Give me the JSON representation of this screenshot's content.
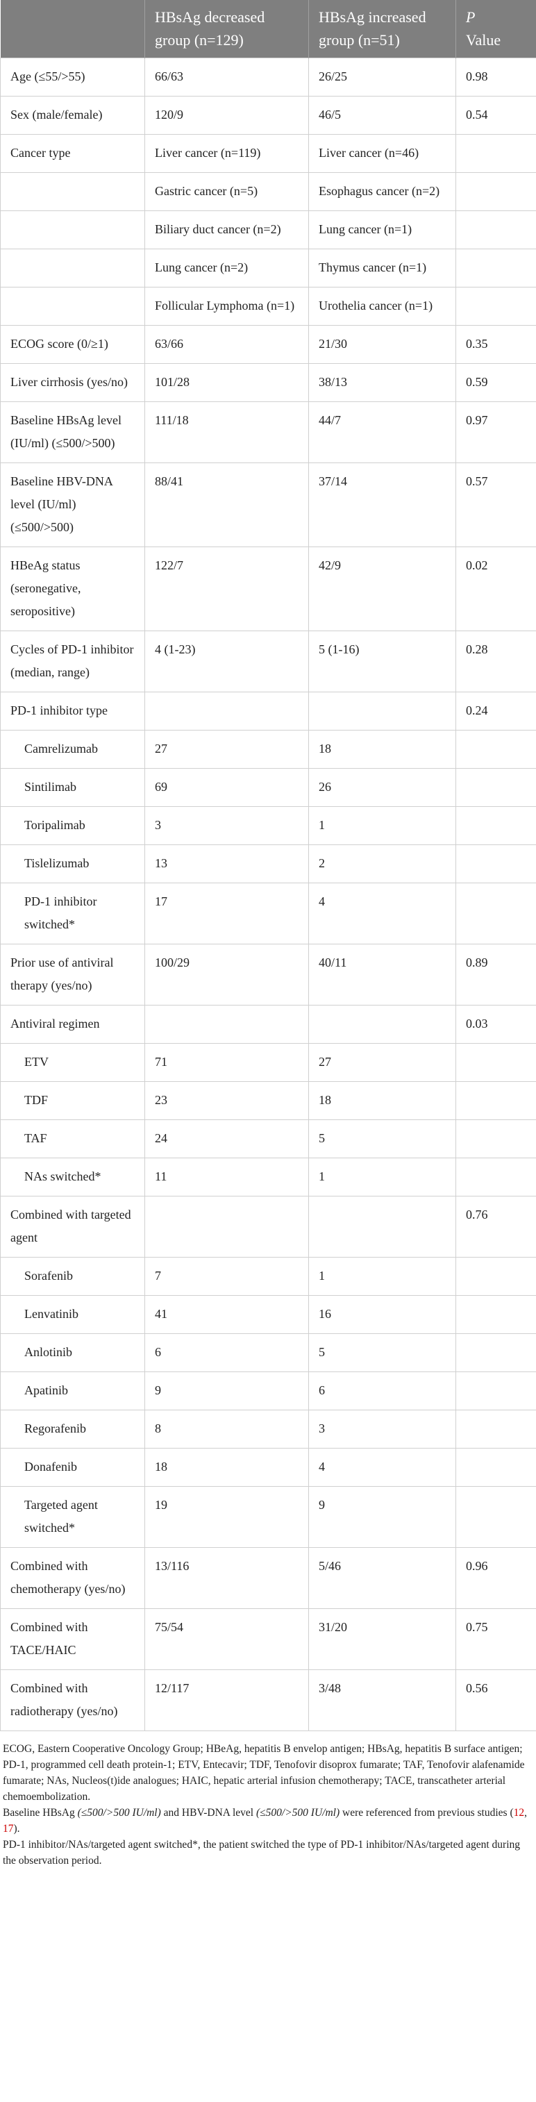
{
  "table": {
    "header": [
      "HBsAg decreased group (n=129)",
      "HBsAg increased group (n=51)",
      "P",
      "Value"
    ],
    "rows": [
      {
        "cells": [
          "Age (≤55/>55)",
          "66/63",
          "26/25",
          "0.98"
        ]
      },
      {
        "cells": [
          "Sex (male/female)",
          "120/9",
          "46/5",
          "0.54"
        ]
      },
      {
        "cells": [
          "Cancer type",
          "Liver cancer (n=119)",
          "Liver cancer (n=46)"
        ]
      },
      {
        "cells": [
          null,
          "Gastric cancer (n=5)",
          "Esophagus cancer (n=2)"
        ]
      },
      {
        "cells": [
          null,
          "Biliary duct cancer (n=2)",
          "Lung cancer (n=1)"
        ]
      },
      {
        "cells": [
          null,
          "Lung cancer (n=2)",
          "Thymus cancer (n=1)"
        ]
      },
      {
        "cells": [
          null,
          "Follicular Lymphoma (n=1)",
          "Urothelia cancer (n=1)"
        ]
      },
      {
        "cells": [
          "ECOG score (0/≥1)",
          "63/66",
          "21/30",
          "0.35"
        ]
      },
      {
        "cells": [
          "Liver cirrhosis (yes/no)",
          "101/28",
          "38/13",
          "0.59"
        ]
      },
      {
        "cells": [
          "Baseline HBsAg level (IU/ml) (≤500/>500)",
          "111/18",
          "44/7",
          "0.97"
        ]
      },
      {
        "cells": [
          "Baseline HBV-DNA level (IU/ml) (≤500/>500)",
          "88/41",
          "37/14",
          "0.57"
        ]
      },
      {
        "cells": [
          "HBeAg status (seronegative, seropositive)",
          "122/7",
          "42/9",
          "0.02"
        ]
      },
      {
        "cells": [
          "Cycles of PD-1 inhibitor (median, range)",
          "4 (1-23)",
          "5 (1-16)",
          "0.28"
        ]
      },
      {
        "cells": [
          "PD-1 inhibitor type",
          null,
          null,
          "0.24"
        ]
      },
      {
        "cells": [
          "Camrelizumab",
          "27",
          "18"
        ],
        "indent": true
      },
      {
        "cells": [
          "Sintilimab",
          "69",
          "26"
        ],
        "indent": true
      },
      {
        "cells": [
          "Toripalimab",
          "3",
          "1"
        ],
        "indent": true
      },
      {
        "cells": [
          "Tislelizumab",
          "13",
          "2"
        ],
        "indent": true
      },
      {
        "cells": [
          "PD-1 inhibitor switched*",
          "17",
          "4"
        ],
        "indent": true
      },
      {
        "cells": [
          "Prior use of antiviral therapy (yes/no)",
          "100/29",
          "40/11",
          "0.89"
        ]
      },
      {
        "cells": [
          "Antiviral regimen",
          null,
          null,
          "0.03"
        ]
      },
      {
        "cells": [
          "ETV",
          "71",
          "27"
        ],
        "indent": true
      },
      {
        "cells": [
          "TDF",
          "23",
          "18"
        ],
        "indent": true
      },
      {
        "cells": [
          "TAF",
          "24",
          "5"
        ],
        "indent": true
      },
      {
        "cells": [
          "NAs switched*",
          "11",
          "1"
        ],
        "indent": true
      },
      {
        "cells": [
          "Combined with targeted agent",
          null,
          null,
          "0.76"
        ]
      },
      {
        "cells": [
          "Sorafenib",
          "7",
          "1"
        ],
        "indent": true
      },
      {
        "cells": [
          "Lenvatinib",
          "41",
          "16"
        ],
        "indent": true
      },
      {
        "cells": [
          "Anlotinib",
          "6",
          "5"
        ],
        "indent": true
      },
      {
        "cells": [
          "Apatinib",
          "9",
          "6"
        ],
        "indent": true
      },
      {
        "cells": [
          "Regorafenib",
          "8",
          "3"
        ],
        "indent": true
      },
      {
        "cells": [
          "Donafenib",
          "18",
          "4"
        ],
        "indent": true
      },
      {
        "cells": [
          "Targeted agent switched*",
          "19",
          "9"
        ],
        "indent": true
      },
      {
        "cells": [
          "Combined with chemotherapy (yes/no)",
          "13/116",
          "5/46",
          "0.96"
        ]
      },
      {
        "cells": [
          "Combined with TACE/HAIC",
          "75/54",
          "31/20",
          "0.75"
        ]
      },
      {
        "cells": [
          "Combined with radiotherapy (yes/no)",
          "12/117",
          "3/48",
          "0.56"
        ]
      }
    ]
  },
  "footnotes": [
    "ECOG, Eastern Cooperative Oncology Group; HBeAg, hepatitis B envelop antigen; HBsAg, hepatitis B surface antigen; PD-1, programmed cell death protein-1; ETV, Entecavir; TDF, Tenofovir disoprox fumarate; TAF, Tenofovir alafenamide fumarate; NAs, Nucleos(t)ide analogues; HAIC, hepatic arterial infusion chemotherapy; TACE, transcatheter arterial chemoembolization.",
    [
      "Baseline HBsAg ",
      "(≤500/>500 IU/ml)",
      " and HBV-DNA level ",
      "(≤500/>500 IU/ml)",
      " were referenced from previous studies (",
      "12",
      ", ",
      "17",
      ")."
    ],
    "PD-1 inhibitor/NAs/targeted agent switched*, the patient switched the type of PD-1 inhibitor/NAs/targeted agent during the observation period."
  ]
}
